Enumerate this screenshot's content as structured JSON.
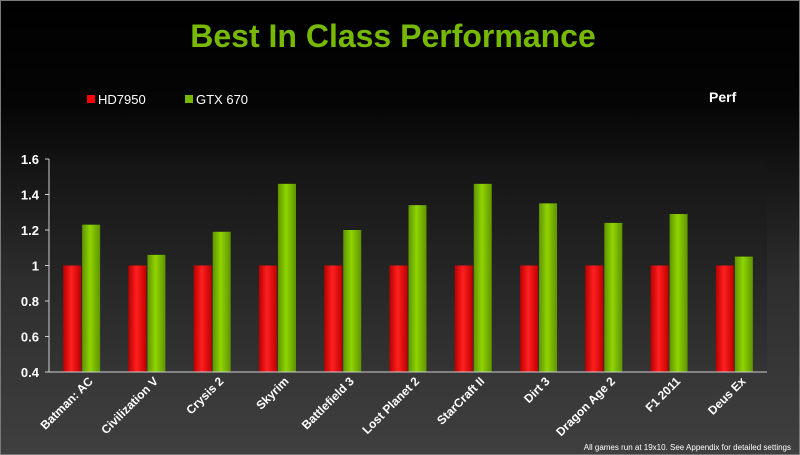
{
  "title": "Best In Class Performance",
  "perf_label": "Perf",
  "footnote": "All games run at 19x10. See Appendix for detailed  settings",
  "colors": {
    "title": "#76b900",
    "hd7950": "#ff0000",
    "gtx670": "#76b900",
    "background": "#000000"
  },
  "chart_data": {
    "type": "bar",
    "title": "Best In Class Performance",
    "ylabel": "Perf",
    "xlabel": "",
    "ylim": [
      0.4,
      1.6
    ],
    "yticks": [
      "0.4",
      "0.6",
      "0.8",
      "1",
      "1.2",
      "1.4",
      "1.6"
    ],
    "categories": [
      "Batman: AC",
      "Civilization V",
      "Crysis 2",
      "Skyrim",
      "Battlefield 3",
      "Lost Planet 2",
      "StarCraft II",
      "Dirt 3",
      "Dragon Age 2",
      "F1 2011",
      "Deus Ex"
    ],
    "series": [
      {
        "name": "HD7950",
        "color": "#ff0000",
        "values": [
          1,
          1,
          1,
          1,
          1,
          1,
          1,
          1,
          1,
          1,
          1
        ]
      },
      {
        "name": "GTX 670",
        "color": "#76b900",
        "values": [
          1.23,
          1.06,
          1.19,
          1.46,
          1.2,
          1.34,
          1.46,
          1.35,
          1.24,
          1.29,
          1.05
        ]
      }
    ],
    "grid": false,
    "legend_position": "top-left"
  }
}
